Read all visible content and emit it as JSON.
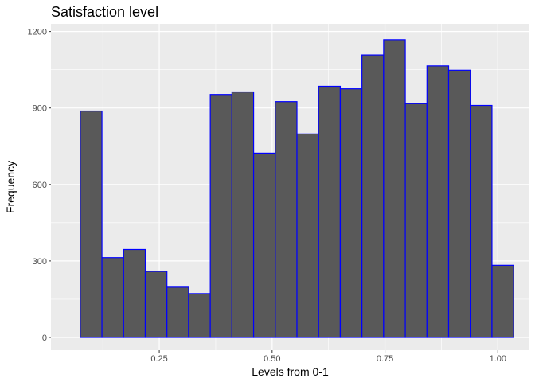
{
  "chart_data": {
    "type": "histogram",
    "title": "Satisfaction level",
    "xlabel": "Levels from 0-1",
    "ylabel": "Frequency",
    "xlim": [
      0.01,
      1.07
    ],
    "ylim": [
      -50,
      1230
    ],
    "x_ticks": [
      0.25,
      0.5,
      0.75,
      1.0
    ],
    "x_tick_labels": [
      "0.25",
      "0.50",
      "0.75",
      "1.00"
    ],
    "y_ticks": [
      0,
      300,
      600,
      900,
      1200
    ],
    "y_tick_labels": [
      "0",
      "300",
      "600",
      "900",
      "1200"
    ],
    "bin_width": 0.048,
    "bins": [
      {
        "x0": 0.075,
        "x1": 0.123,
        "count": 888
      },
      {
        "x0": 0.123,
        "x1": 0.171,
        "count": 313
      },
      {
        "x0": 0.171,
        "x1": 0.219,
        "count": 345
      },
      {
        "x0": 0.219,
        "x1": 0.267,
        "count": 259
      },
      {
        "x0": 0.267,
        "x1": 0.315,
        "count": 197
      },
      {
        "x0": 0.315,
        "x1": 0.363,
        "count": 172
      },
      {
        "x0": 0.363,
        "x1": 0.411,
        "count": 953
      },
      {
        "x0": 0.411,
        "x1": 0.459,
        "count": 963
      },
      {
        "x0": 0.459,
        "x1": 0.507,
        "count": 723
      },
      {
        "x0": 0.507,
        "x1": 0.555,
        "count": 925
      },
      {
        "x0": 0.555,
        "x1": 0.603,
        "count": 798
      },
      {
        "x0": 0.603,
        "x1": 0.651,
        "count": 985
      },
      {
        "x0": 0.651,
        "x1": 0.699,
        "count": 975
      },
      {
        "x0": 0.699,
        "x1": 0.747,
        "count": 1108
      },
      {
        "x0": 0.747,
        "x1": 0.795,
        "count": 1168
      },
      {
        "x0": 0.795,
        "x1": 0.843,
        "count": 917
      },
      {
        "x0": 0.843,
        "x1": 0.891,
        "count": 1065
      },
      {
        "x0": 0.891,
        "x1": 0.939,
        "count": 1048
      },
      {
        "x0": 0.939,
        "x1": 0.987,
        "count": 910
      },
      {
        "x0": 0.987,
        "x1": 1.035,
        "count": 283
      }
    ],
    "grid": true,
    "legend": "none",
    "colors": {
      "panel_background": "#ebebeb",
      "grid": "#ffffff",
      "bar_fill": "#595959",
      "bar_outline": "#0000ff"
    }
  }
}
